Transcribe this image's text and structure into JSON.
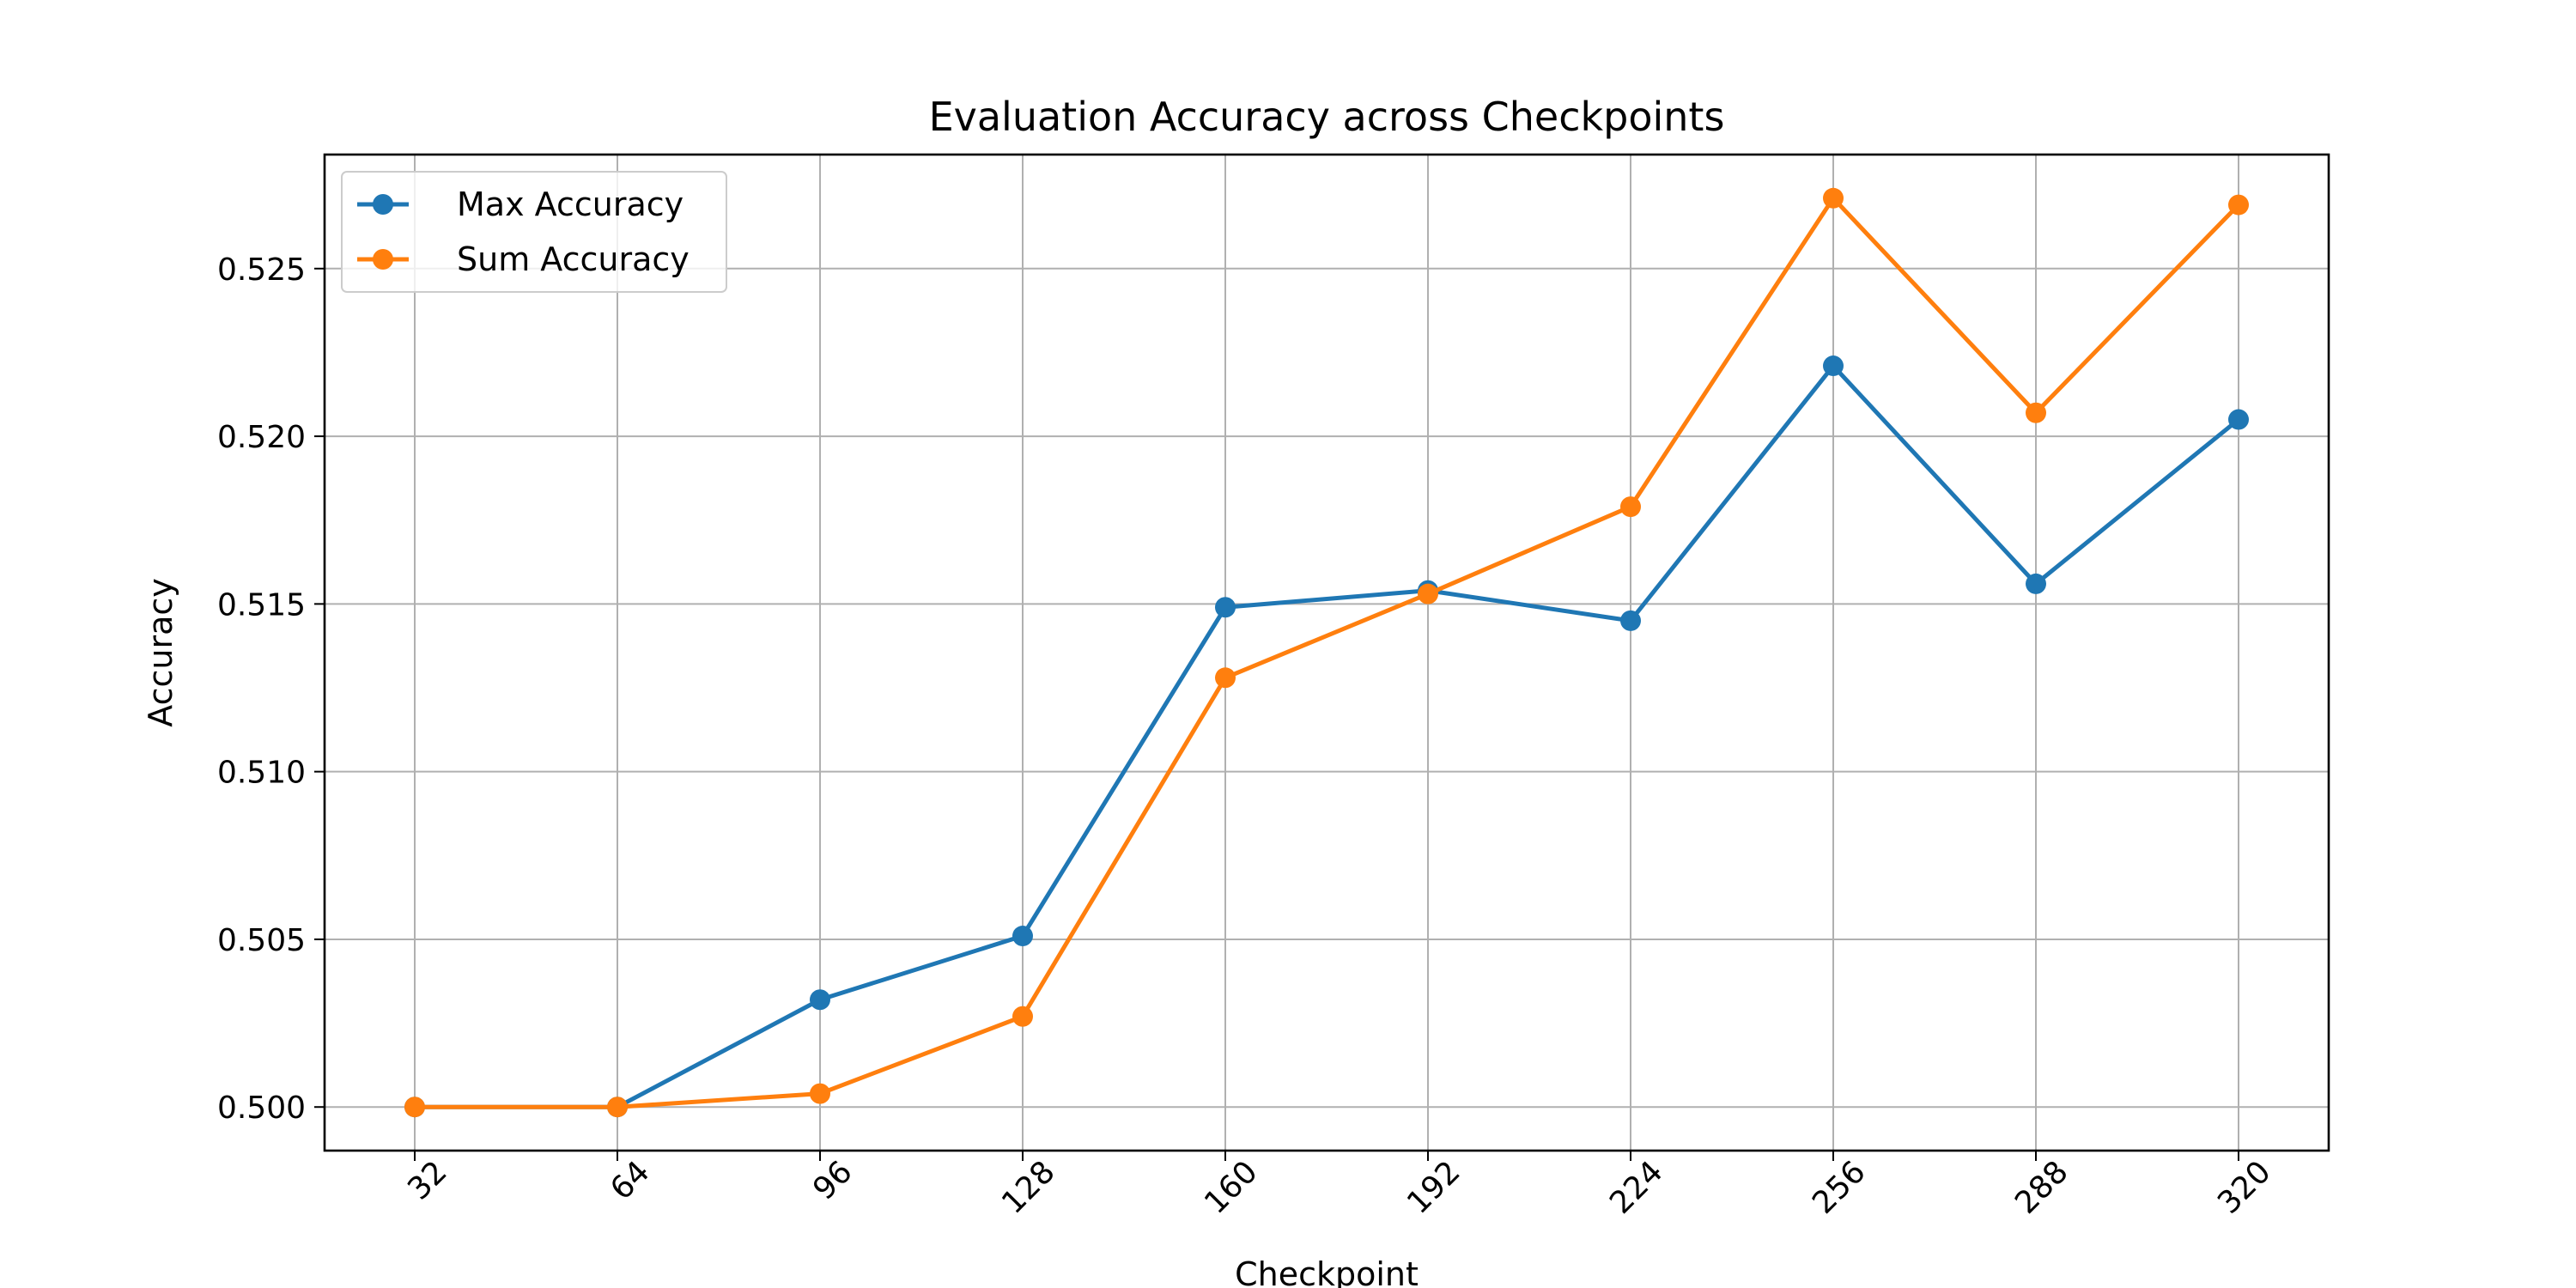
{
  "chart_data": {
    "type": "line",
    "title": "Evaluation Accuracy across Checkpoints",
    "xlabel": "Checkpoint",
    "ylabel": "Accuracy",
    "x": [
      32,
      64,
      96,
      128,
      160,
      192,
      224,
      256,
      288,
      320
    ],
    "x_tick_labels": [
      "32",
      "64",
      "96",
      "128",
      "160",
      "192",
      "224",
      "256",
      "288",
      "320"
    ],
    "y_ticks": [
      0.5,
      0.505,
      0.51,
      0.515,
      0.52,
      0.525
    ],
    "y_tick_labels": [
      "0.500",
      "0.505",
      "0.510",
      "0.515",
      "0.520",
      "0.525"
    ],
    "ylim": [
      0.4987,
      0.5284
    ],
    "grid": true,
    "legend_position": "top-left",
    "series": [
      {
        "name": "Max Accuracy",
        "color": "#1f77b4",
        "marker": "circle",
        "values": [
          0.5,
          0.5,
          0.5032,
          0.5051,
          0.5149,
          0.5154,
          0.5145,
          0.5221,
          0.5156,
          0.5205
        ]
      },
      {
        "name": "Sum Accuracy",
        "color": "#ff7f0e",
        "marker": "circle",
        "values": [
          0.5,
          0.5,
          0.5004,
          0.5027,
          0.5128,
          0.5153,
          0.5179,
          0.5271,
          0.5207,
          0.5269
        ]
      }
    ]
  }
}
